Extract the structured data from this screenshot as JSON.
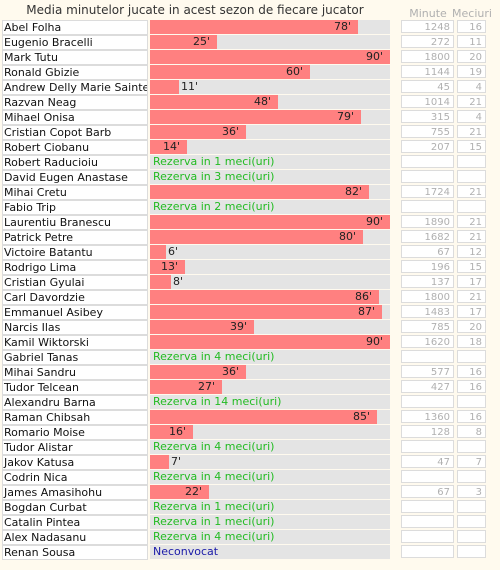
{
  "chart_data": {
    "type": "bar",
    "title": "Media minutelor jucate in acest sezon de fiecare jucator",
    "columns": [
      "Minute",
      "Meciuri"
    ],
    "max_value": 90,
    "value_suffix": "'",
    "rows": [
      {
        "name": "Abel Folha",
        "avg": 78,
        "minutes": "1248",
        "matches": "16"
      },
      {
        "name": "Eugenio Bracelli",
        "avg": 25,
        "minutes": "272",
        "matches": "11"
      },
      {
        "name": "Mark Tutu",
        "avg": 90,
        "minutes": "1800",
        "matches": "20"
      },
      {
        "name": "Ronald Gbizie",
        "avg": 60,
        "minutes": "1144",
        "matches": "19"
      },
      {
        "name": "Andrew Delly Marie Sainte",
        "avg": 11,
        "minutes": "45",
        "matches": "4"
      },
      {
        "name": "Razvan Neag",
        "avg": 48,
        "minutes": "1014",
        "matches": "21"
      },
      {
        "name": "Mihael Onisa",
        "avg": 79,
        "minutes": "315",
        "matches": "4"
      },
      {
        "name": "Cristian Copot Barb",
        "avg": 36,
        "minutes": "755",
        "matches": "21"
      },
      {
        "name": "Robert Ciobanu",
        "avg": 14,
        "minutes": "207",
        "matches": "15"
      },
      {
        "name": "Robert Raducioiu",
        "note": "Rezerva in 1 meci(uri)",
        "minutes": "",
        "matches": ""
      },
      {
        "name": "David Eugen Anastase",
        "note": "Rezerva in 3 meci(uri)",
        "minutes": "",
        "matches": ""
      },
      {
        "name": "Mihai Cretu",
        "avg": 82,
        "minutes": "1724",
        "matches": "21"
      },
      {
        "name": "Fabio Trip",
        "note": "Rezerva in 2 meci(uri)",
        "minutes": "",
        "matches": ""
      },
      {
        "name": "Laurentiu Branescu",
        "avg": 90,
        "minutes": "1890",
        "matches": "21"
      },
      {
        "name": "Patrick Petre",
        "avg": 80,
        "minutes": "1682",
        "matches": "21"
      },
      {
        "name": "Victoire Batantu",
        "avg": 6,
        "minutes": "67",
        "matches": "12"
      },
      {
        "name": "Rodrigo Lima",
        "avg": 13,
        "minutes": "196",
        "matches": "15"
      },
      {
        "name": "Cristian Gyulai",
        "avg": 8,
        "minutes": "137",
        "matches": "17"
      },
      {
        "name": "Carl Davordzie",
        "avg": 86,
        "minutes": "1800",
        "matches": "21"
      },
      {
        "name": "Emmanuel Asibey",
        "avg": 87,
        "minutes": "1483",
        "matches": "17"
      },
      {
        "name": "Narcis Ilas",
        "avg": 39,
        "minutes": "785",
        "matches": "20"
      },
      {
        "name": "Kamil Wiktorski",
        "avg": 90,
        "minutes": "1620",
        "matches": "18"
      },
      {
        "name": "Gabriel Tanas",
        "note": "Rezerva in 4 meci(uri)",
        "minutes": "",
        "matches": ""
      },
      {
        "name": "Mihai Sandru",
        "avg": 36,
        "minutes": "577",
        "matches": "16"
      },
      {
        "name": "Tudor Telcean",
        "avg": 27,
        "minutes": "427",
        "matches": "16"
      },
      {
        "name": "Alexandru Barna",
        "note": "Rezerva in 14 meci(uri)",
        "minutes": "",
        "matches": ""
      },
      {
        "name": "Raman Chibsah",
        "avg": 85,
        "minutes": "1360",
        "matches": "16"
      },
      {
        "name": "Romario Moise",
        "avg": 16,
        "minutes": "128",
        "matches": "8"
      },
      {
        "name": "Tudor Alistar",
        "note": "Rezerva in 4 meci(uri)",
        "minutes": "",
        "matches": ""
      },
      {
        "name": "Jakov Katusa",
        "avg": 7,
        "minutes": "47",
        "matches": "7"
      },
      {
        "name": "Codrin Nica",
        "note": "Rezerva in 4 meci(uri)",
        "minutes": "",
        "matches": ""
      },
      {
        "name": "James Amasihohu",
        "avg": 22,
        "minutes": "67",
        "matches": "3"
      },
      {
        "name": "Bogdan Curbat",
        "note": "Rezerva in 1 meci(uri)",
        "minutes": "",
        "matches": ""
      },
      {
        "name": "Catalin Pintea",
        "note": "Rezerva in 1 meci(uri)",
        "minutes": "",
        "matches": ""
      },
      {
        "name": "Alex Nadasanu",
        "note": "Rezerva in 4 meci(uri)",
        "minutes": "",
        "matches": ""
      },
      {
        "name": "Renan Sousa",
        "note": "Neconvocat",
        "note_color": "#1a1aa8",
        "minutes": "",
        "matches": ""
      }
    ]
  },
  "colors": {
    "bar": "#ff8080",
    "track": "#e4e4e4",
    "reserve_text": "#22bb22",
    "not_called_text": "#1a1aa8",
    "background": "#fffaee"
  }
}
